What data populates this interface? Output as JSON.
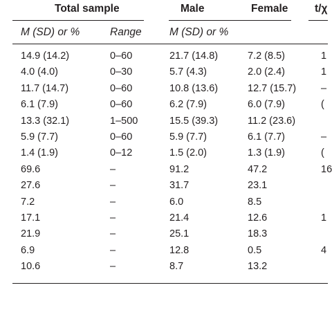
{
  "table": {
    "headers": {
      "total_sample": "Total sample",
      "male": "Male",
      "female": "Female",
      "test_stat": "t/χ"
    },
    "subheaders": {
      "total_msd": "M (SD) or %",
      "range": "Range",
      "male_msd": "M (SD) or %"
    },
    "rows": [
      {
        "total": "14.9 (14.2)",
        "range": "0–60",
        "male": "21.7 (14.8)",
        "female": "7.2 (8.5)",
        "stat": "1"
      },
      {
        "total": "4.0 (4.0)",
        "range": "0–30",
        "male": "5.7 (4.3)",
        "female": "2.0 (2.4)",
        "stat": "1"
      },
      {
        "total": "11.7 (14.7)",
        "range": "0–60",
        "male": "10.8 (13.6)",
        "female": "12.7 (15.7)",
        "stat": "–"
      },
      {
        "total": "6.1 (7.9)",
        "range": "0–60",
        "male": "6.2 (7.9)",
        "female": "6.0 (7.9)",
        "stat": "("
      },
      {
        "total": "13.3 (32.1)",
        "range": "1–500",
        "male": "15.5 (39.3)",
        "female": "11.2 (23.6)",
        "stat": ""
      },
      {
        "total": "5.9 (7.7)",
        "range": "0–60",
        "male": "5.9 (7.7)",
        "female": "6.1 (7.7)",
        "stat": "–"
      },
      {
        "total": "1.4 (1.9)",
        "range": "0–12",
        "male": "1.5 (2.0)",
        "female": "1.3 (1.9)",
        "stat": "("
      },
      {
        "total": "69.6",
        "range": "–",
        "male": "91.2",
        "female": "47.2",
        "stat": "16"
      },
      {
        "total": "27.6",
        "range": "–",
        "male": "31.7",
        "female": "23.1",
        "stat": ""
      },
      {
        "total": "7.2",
        "range": "–",
        "male": "6.0",
        "female": "8.5",
        "stat": ""
      },
      {
        "total": "17.1",
        "range": "–",
        "male": "21.4",
        "female": "12.6",
        "stat": "1"
      },
      {
        "total": "21.9",
        "range": "–",
        "male": "25.1",
        "female": "18.3",
        "stat": ""
      },
      {
        "total": "6.9",
        "range": "–",
        "male": "12.8",
        "female": "0.5",
        "stat": "4"
      },
      {
        "total": "10.6",
        "range": "–",
        "male": "8.7",
        "female": "13.2",
        "stat": ""
      }
    ]
  }
}
